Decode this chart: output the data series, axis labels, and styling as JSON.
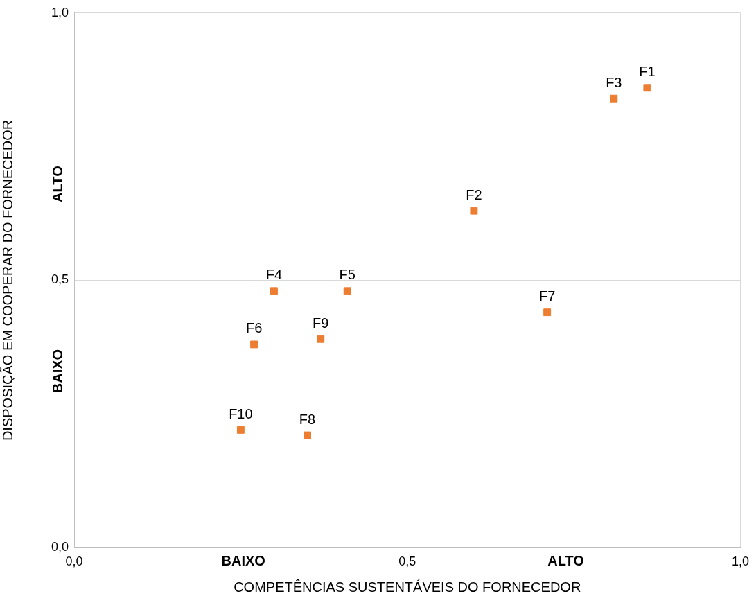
{
  "chart_data": {
    "type": "scatter",
    "xlabel": "COMPETÊNCIAS SUSTENTÁVEIS DO FORNECEDOR",
    "ylabel": "DISPOSIÇÃO EM COOPERAR DO FORNECEDOR",
    "x": [
      0.86,
      0.6,
      0.81,
      0.3,
      0.41,
      0.27,
      0.71,
      0.35,
      0.37,
      0.25
    ],
    "series": [
      {
        "color": "#ed7d31",
        "values": [
          0.86,
          0.63,
          0.84,
          0.48,
          0.48,
          0.38,
          0.44,
          0.21,
          0.39,
          0.22
        ]
      }
    ],
    "xlim": [
      0,
      1
    ],
    "ylim": [
      0,
      1
    ],
    "xticks": [
      {
        "value": 0,
        "label": "0,0"
      },
      {
        "value": 0.5,
        "label": "0,5"
      },
      {
        "value": 1,
        "label": "1,0"
      }
    ],
    "yticks": [
      {
        "value": 0,
        "label": "0,0"
      },
      {
        "value": 0.5,
        "label": "0,5"
      },
      {
        "value": 1,
        "label": "1,0"
      }
    ],
    "grid": true,
    "legend": false,
    "marker": "square",
    "annotations": [
      {
        "text": "F1",
        "x": 0.86,
        "y": 0.86
      },
      {
        "text": "F2",
        "x": 0.6,
        "y": 0.63
      },
      {
        "text": "F3",
        "x": 0.81,
        "y": 0.84
      },
      {
        "text": "F4",
        "x": 0.3,
        "y": 0.48
      },
      {
        "text": "F5",
        "x": 0.41,
        "y": 0.48
      },
      {
        "text": "F6",
        "x": 0.27,
        "y": 0.38
      },
      {
        "text": "F7",
        "x": 0.71,
        "y": 0.44
      },
      {
        "text": "F8",
        "x": 0.35,
        "y": 0.21
      },
      {
        "text": "F9",
        "x": 0.37,
        "y": 0.39
      },
      {
        "text": "F10",
        "x": 0.25,
        "y": 0.22
      },
      "BAIXO",
      "ALTO",
      "ALTO",
      "BAIXO"
    ]
  }
}
